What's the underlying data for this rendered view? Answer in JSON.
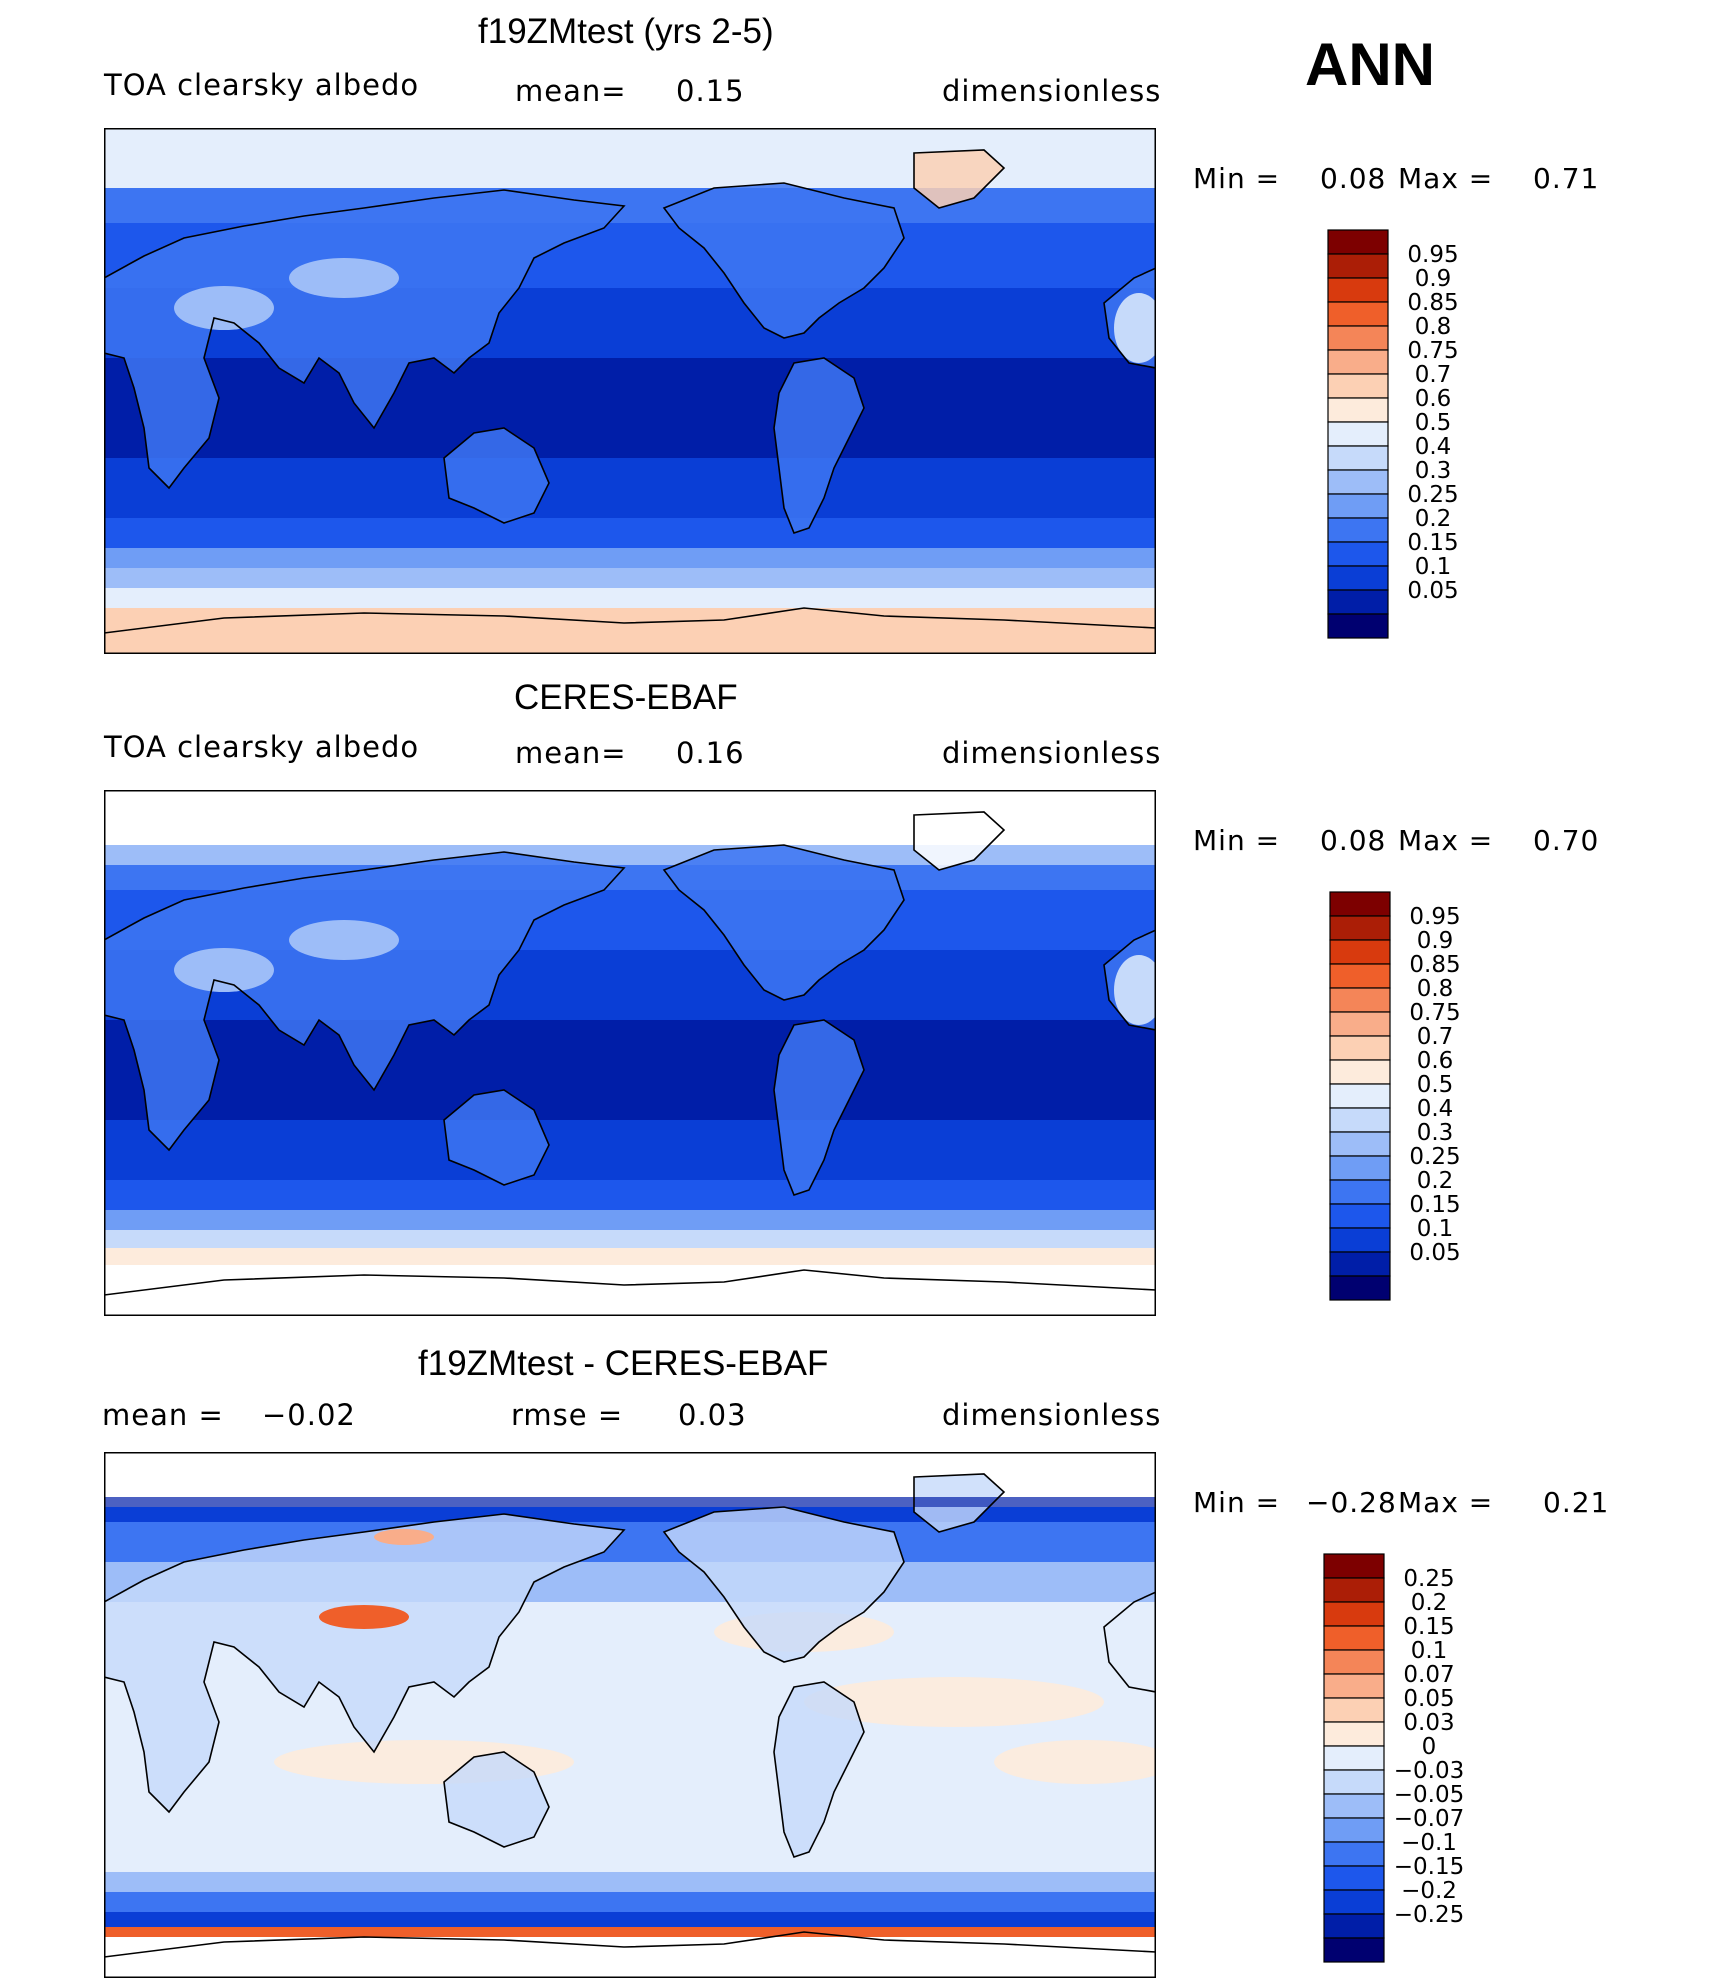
{
  "season": "ANN",
  "colors": {
    "abs_scale": [
      "#000070",
      "#001ea8",
      "#0a3ed6",
      "#1d57ec",
      "#3d75f2",
      "#6f9df5",
      "#9dbdf8",
      "#c6dafa",
      "#e4eefc",
      "#fdebdc",
      "#fcd0b4",
      "#f9ad8a",
      "#f48558",
      "#ef5f2a",
      "#d83a0e",
      "#ab1e06",
      "#7d0000"
    ],
    "diff_scale": [
      "#000070",
      "#001ea8",
      "#0a3ed6",
      "#1d57ec",
      "#3d75f2",
      "#6f9df5",
      "#9dbdf8",
      "#c6dafa",
      "#e4eefc",
      "#fdebdc",
      "#fcd0b4",
      "#f9ad8a",
      "#f48558",
      "#ef5f2a",
      "#d83a0e",
      "#ab1e06",
      "#7d0000"
    ],
    "land_line": "#000000"
  },
  "chart_data": [
    {
      "type": "heatmap",
      "title": "f19ZMtest (yrs 2-5)",
      "variable": "TOA clearsky albedo",
      "mean_label": "mean=",
      "mean": "0.15",
      "units": "dimensionless",
      "min_label": "Min =",
      "min": "0.08",
      "max_label": "Max =",
      "max": "0.71",
      "levels": [
        "0.05",
        "0.1",
        "0.15",
        "0.2",
        "0.25",
        "0.3",
        "0.4",
        "0.5",
        "0.6",
        "0.7",
        "0.75",
        "0.8",
        "0.85",
        "0.9",
        "0.95"
      ]
    },
    {
      "type": "heatmap",
      "title": "CERES-EBAF",
      "variable": "TOA clearsky albedo",
      "mean_label": "mean=",
      "mean": "0.16",
      "units": "dimensionless",
      "min_label": "Min =",
      "min": "0.08",
      "max_label": "Max =",
      "max": "0.70",
      "levels": [
        "0.05",
        "0.1",
        "0.15",
        "0.2",
        "0.25",
        "0.3",
        "0.4",
        "0.5",
        "0.6",
        "0.7",
        "0.75",
        "0.8",
        "0.85",
        "0.9",
        "0.95"
      ]
    },
    {
      "type": "heatmap",
      "title": "f19ZMtest - CERES-EBAF",
      "mean_label": "mean =",
      "mean": "−0.02",
      "rmse_label": "rmse =",
      "rmse": "0.03",
      "units": "dimensionless",
      "min_label": "Min =",
      "min": "−0.28",
      "max_label": "Max =",
      "max": "0.21",
      "levels": [
        "−0.25",
        "−0.2",
        "−0.15",
        "−0.1",
        "−0.07",
        "−0.05",
        "−0.03",
        "0",
        "0.03",
        "0.05",
        "0.07",
        "0.1",
        "0.15",
        "0.2",
        "0.25"
      ]
    }
  ]
}
